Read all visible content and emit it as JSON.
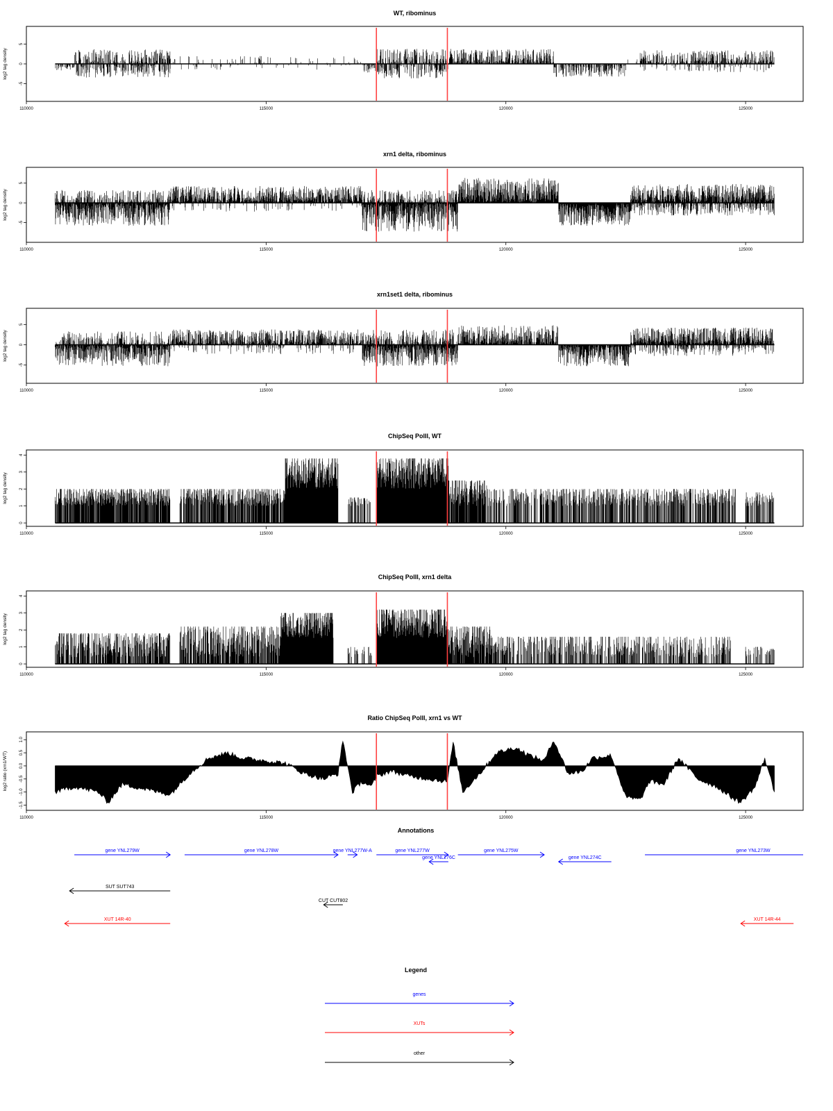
{
  "chart_data": [
    {
      "type": "bar",
      "title": "WT, ribominus",
      "ylabel": "log2 tag density",
      "xlim": [
        110000,
        126200
      ],
      "ylim": [
        -9.5,
        9.5
      ],
      "xticks": [
        "110000",
        "115000",
        "120000",
        "125000"
      ],
      "yticks": [
        "5",
        "0",
        "-5"
      ],
      "ytick_values": [
        5,
        0,
        -5
      ],
      "markers": [
        117300,
        118780
      ],
      "segments": [
        {
          "from": 110600,
          "to": 111000,
          "side": -1,
          "amp": 1.5,
          "density": 0.45
        },
        {
          "from": 111000,
          "to": 113000,
          "side": 1,
          "amp": 3.5,
          "density": 0.55
        },
        {
          "from": 111000,
          "to": 113000,
          "side": -1,
          "amp": 3.2,
          "density": 0.5
        },
        {
          "from": 113000,
          "to": 117000,
          "side": 1,
          "amp": 1.8,
          "density": 0.08
        },
        {
          "from": 113000,
          "to": 117000,
          "side": -1,
          "amp": 1.2,
          "density": 0.05
        },
        {
          "from": 117000,
          "to": 117300,
          "side": -1,
          "amp": 2.0,
          "density": 0.5
        },
        {
          "from": 117300,
          "to": 118800,
          "side": 1,
          "amp": 3.5,
          "density": 0.55
        },
        {
          "from": 117300,
          "to": 118800,
          "side": -1,
          "amp": 3.5,
          "density": 0.5
        },
        {
          "from": 118800,
          "to": 121000,
          "side": 1,
          "amp": 3.5,
          "density": 0.7
        },
        {
          "from": 121000,
          "to": 122500,
          "side": -1,
          "amp": 3.0,
          "density": 0.55
        },
        {
          "from": 122500,
          "to": 122800,
          "side": 1,
          "amp": 1.0,
          "density": 0.1
        },
        {
          "from": 122800,
          "to": 125600,
          "side": 1,
          "amp": 3.2,
          "density": 0.6
        },
        {
          "from": 122800,
          "to": 125600,
          "side": -1,
          "amp": 1.8,
          "density": 0.15
        }
      ]
    },
    {
      "type": "bar",
      "title": "xrn1 delta, ribominus",
      "ylabel": "log2 tag density",
      "xlim": [
        110000,
        126200
      ],
      "ylim": [
        -10,
        9
      ],
      "xticks": [
        "110000",
        "115000",
        "120000",
        "125000"
      ],
      "yticks": [
        "5",
        "0",
        "-5"
      ],
      "ytick_values": [
        5,
        0,
        -5
      ],
      "markers": [
        117300,
        118780
      ],
      "segments": [
        {
          "from": 110600,
          "to": 113000,
          "side": -1,
          "amp": 5.5,
          "density": 0.9
        },
        {
          "from": 110600,
          "to": 113000,
          "side": 1,
          "amp": 3.0,
          "density": 0.5
        },
        {
          "from": 113000,
          "to": 117000,
          "side": 1,
          "amp": 4.0,
          "density": 0.85
        },
        {
          "from": 113000,
          "to": 117000,
          "side": -1,
          "amp": 2.0,
          "density": 0.15
        },
        {
          "from": 117000,
          "to": 119000,
          "side": -1,
          "amp": 7.0,
          "density": 0.95
        },
        {
          "from": 117000,
          "to": 119000,
          "side": 1,
          "amp": 3.0,
          "density": 0.5
        },
        {
          "from": 119000,
          "to": 121100,
          "side": 1,
          "amp": 6.0,
          "density": 0.95
        },
        {
          "from": 121100,
          "to": 122600,
          "side": -1,
          "amp": 5.5,
          "density": 0.95
        },
        {
          "from": 122600,
          "to": 125600,
          "side": 1,
          "amp": 4.5,
          "density": 0.9
        },
        {
          "from": 122600,
          "to": 125600,
          "side": -1,
          "amp": 3.0,
          "density": 0.5
        }
      ]
    },
    {
      "type": "bar",
      "title": "xrn1set1 delta, ribominus",
      "ylabel": "log2 tag density",
      "xlim": [
        110000,
        126200
      ],
      "ylim": [
        -9.5,
        9
      ],
      "xticks": [
        "110000",
        "115000",
        "120000",
        "125000"
      ],
      "yticks": [
        "5",
        "0",
        "-5"
      ],
      "ytick_values": [
        5,
        0,
        -5
      ],
      "markers": [
        117300,
        118780
      ],
      "segments": [
        {
          "from": 110600,
          "to": 113000,
          "side": -1,
          "amp": 5.0,
          "density": 0.85
        },
        {
          "from": 110600,
          "to": 113000,
          "side": 1,
          "amp": 3.0,
          "density": 0.45
        },
        {
          "from": 113000,
          "to": 117000,
          "side": 1,
          "amp": 3.5,
          "density": 0.75
        },
        {
          "from": 113000,
          "to": 117000,
          "side": -1,
          "amp": 2.0,
          "density": 0.15
        },
        {
          "from": 117000,
          "to": 119000,
          "side": -1,
          "amp": 5.0,
          "density": 0.85
        },
        {
          "from": 117000,
          "to": 119000,
          "side": 1,
          "amp": 3.5,
          "density": 0.55
        },
        {
          "from": 119000,
          "to": 121100,
          "side": 1,
          "amp": 4.5,
          "density": 0.85
        },
        {
          "from": 121100,
          "to": 122600,
          "side": -1,
          "amp": 5.0,
          "density": 0.9
        },
        {
          "from": 122600,
          "to": 125600,
          "side": 1,
          "amp": 4.0,
          "density": 0.85
        },
        {
          "from": 122600,
          "to": 125600,
          "side": -1,
          "amp": 2.5,
          "density": 0.35
        }
      ]
    },
    {
      "type": "bar",
      "title": "ChipSeq PolII, WT",
      "ylabel": "log2 tag density",
      "xlim": [
        110000,
        126200
      ],
      "ylim": [
        -0.2,
        4.3
      ],
      "xticks": [
        "110000",
        "115000",
        "120000",
        "125000"
      ],
      "yticks": [
        "4",
        "3",
        "2",
        "1",
        "0"
      ],
      "ytick_values": [
        4,
        3,
        2,
        1,
        0
      ],
      "markers": [
        117300,
        118780
      ],
      "segments": [
        {
          "from": 110600,
          "to": 113000,
          "side": 1,
          "amp": 2.0,
          "density": 0.85,
          "base": 1.0
        },
        {
          "from": 113200,
          "to": 115400,
          "side": 1,
          "amp": 2.0,
          "density": 0.8,
          "base": 1.0
        },
        {
          "from": 115400,
          "to": 116500,
          "side": 1,
          "amp": 3.8,
          "density": 1.0,
          "base": 2.0
        },
        {
          "from": 116700,
          "to": 117200,
          "side": 1,
          "amp": 1.5,
          "density": 0.5,
          "base": 1.0
        },
        {
          "from": 117300,
          "to": 118800,
          "side": 1,
          "amp": 3.8,
          "density": 1.0,
          "base": 2.0
        },
        {
          "from": 118800,
          "to": 119600,
          "side": 1,
          "amp": 2.5,
          "density": 0.85,
          "base": 1.0
        },
        {
          "from": 119600,
          "to": 124800,
          "side": 1,
          "amp": 2.0,
          "density": 0.55,
          "base": 1.0
        },
        {
          "from": 125000,
          "to": 125600,
          "side": 1,
          "amp": 1.8,
          "density": 0.5,
          "base": 1.0
        }
      ]
    },
    {
      "type": "bar",
      "title": "ChipSeq PolII, xrn1 delta",
      "ylabel": "log2 tag density",
      "xlim": [
        110000,
        126200
      ],
      "ylim": [
        -0.2,
        4.3
      ],
      "xticks": [
        "110000",
        "115000",
        "120000",
        "125000"
      ],
      "yticks": [
        "4",
        "3",
        "2",
        "1",
        "0"
      ],
      "ytick_values": [
        4,
        3,
        2,
        1,
        0
      ],
      "markers": [
        117300,
        118780
      ],
      "segments": [
        {
          "from": 110600,
          "to": 113000,
          "side": 1,
          "amp": 1.8,
          "density": 0.75,
          "base": 0.4
        },
        {
          "from": 113200,
          "to": 115300,
          "side": 1,
          "amp": 2.2,
          "density": 0.8,
          "base": 0.4
        },
        {
          "from": 115300,
          "to": 116400,
          "side": 1,
          "amp": 3.0,
          "density": 1.0,
          "base": 1.5
        },
        {
          "from": 116700,
          "to": 117200,
          "side": 1,
          "amp": 1.0,
          "density": 0.3,
          "base": 0.4
        },
        {
          "from": 117300,
          "to": 118800,
          "side": 1,
          "amp": 3.2,
          "density": 1.0,
          "base": 1.5
        },
        {
          "from": 118800,
          "to": 119800,
          "side": 1,
          "amp": 2.2,
          "density": 0.85,
          "base": 0.4
        },
        {
          "from": 119800,
          "to": 124700,
          "side": 1,
          "amp": 1.6,
          "density": 0.5,
          "base": 0.4
        },
        {
          "from": 125000,
          "to": 125600,
          "side": 1,
          "amp": 1.0,
          "density": 0.4,
          "base": 0.4
        }
      ]
    },
    {
      "type": "area",
      "title": "Ratio ChipSeq PolII, xrn1 vs WT",
      "ylabel": "log2 ratio (xrn1/WT)",
      "xlim": [
        110000,
        126200
      ],
      "ylim": [
        -1.7,
        1.3
      ],
      "xticks": [
        "110000",
        "115000",
        "120000",
        "125000"
      ],
      "yticks": [
        "1.0",
        "0.5",
        "0.0",
        "-0.5",
        "-1.0",
        "-1.5"
      ],
      "ytick_values": [
        1.0,
        0.5,
        0.0,
        -0.5,
        -1.0,
        -1.5
      ],
      "markers": [
        117300,
        118780
      ],
      "baseline": 0.0,
      "x": [
        110600,
        111000,
        111500,
        111700,
        112000,
        112500,
        113000,
        113400,
        113800,
        114200,
        114500,
        115000,
        115400,
        115800,
        116200,
        116500,
        116600,
        116800,
        117000,
        117200,
        117300,
        117600,
        118000,
        118400,
        118780,
        118900,
        119100,
        119500,
        119800,
        120200,
        120500,
        120800,
        121000,
        121300,
        121600,
        121800,
        122200,
        122500,
        122800,
        123000,
        123300,
        123600,
        124000,
        124400,
        124700,
        124900,
        125200,
        125400,
        125600
      ],
      "y": [
        -1.0,
        -0.8,
        -1.0,
        -1.4,
        -0.7,
        -0.9,
        -1.1,
        -0.3,
        0.3,
        0.5,
        0.3,
        0.2,
        0.1,
        -0.3,
        -0.5,
        -0.3,
        1.0,
        -1.0,
        -0.6,
        -0.8,
        -0.4,
        -0.2,
        -0.4,
        -0.5,
        -0.6,
        0.9,
        -1.0,
        -0.2,
        0.5,
        0.7,
        0.4,
        0.2,
        1.0,
        -0.3,
        -0.2,
        0.3,
        0.4,
        -1.2,
        -1.3,
        -0.6,
        -0.7,
        0.3,
        -0.5,
        -0.8,
        -1.2,
        -1.4,
        -0.8,
        0.3,
        -1.0
      ]
    }
  ],
  "annotations": {
    "title": "Annotations",
    "items": [
      {
        "label": "gene YNL279W",
        "from": 111000,
        "to": 113000,
        "strand": "+",
        "color": "#0000ff",
        "row": 0
      },
      {
        "label": "gene YNL278W",
        "from": 113300,
        "to": 116500,
        "strand": "+",
        "color": "#0000ff",
        "row": 0
      },
      {
        "label": "gene YNL277W-A",
        "from": 116700,
        "to": 116900,
        "strand": "+",
        "color": "#0000ff",
        "row": 0
      },
      {
        "label": "gene YNL277W",
        "from": 117300,
        "to": 118800,
        "strand": "+",
        "color": "#0000ff",
        "row": 0
      },
      {
        "label": "gene YNL276C",
        "from": 118400,
        "to": 118800,
        "strand": "-",
        "color": "#0000ff",
        "row": 1
      },
      {
        "label": "gene YNL275W",
        "from": 119000,
        "to": 120800,
        "strand": "+",
        "color": "#0000ff",
        "row": 0
      },
      {
        "label": "gene YNL274C",
        "from": 121100,
        "to": 122200,
        "strand": "-",
        "color": "#0000ff",
        "row": 1
      },
      {
        "label": "gene YNL273W",
        "from": 122900,
        "to": 126300,
        "strand": "+",
        "color": "#0000ff",
        "row": 0
      },
      {
        "label": "SUT SUT743",
        "from": 110900,
        "to": 113000,
        "strand": "-",
        "color": "#000000",
        "row": 3
      },
      {
        "label": "CUT CUT802",
        "from": 116200,
        "to": 116600,
        "strand": "-",
        "color": "#000000",
        "row": 4
      },
      {
        "label": "XUT 14R-40",
        "from": 110800,
        "to": 113000,
        "strand": "-",
        "color": "#ff0000",
        "row": 5
      },
      {
        "label": "XUT 14R-44",
        "from": 124900,
        "to": 126000,
        "strand": "-",
        "color": "#ff0000",
        "row": 5
      }
    ]
  },
  "legend": {
    "title": "Legend",
    "items": [
      {
        "label": "genes",
        "color": "#0000ff"
      },
      {
        "label": "XUTs",
        "color": "#ff0000"
      },
      {
        "label": "other",
        "color": "#000000"
      }
    ]
  }
}
